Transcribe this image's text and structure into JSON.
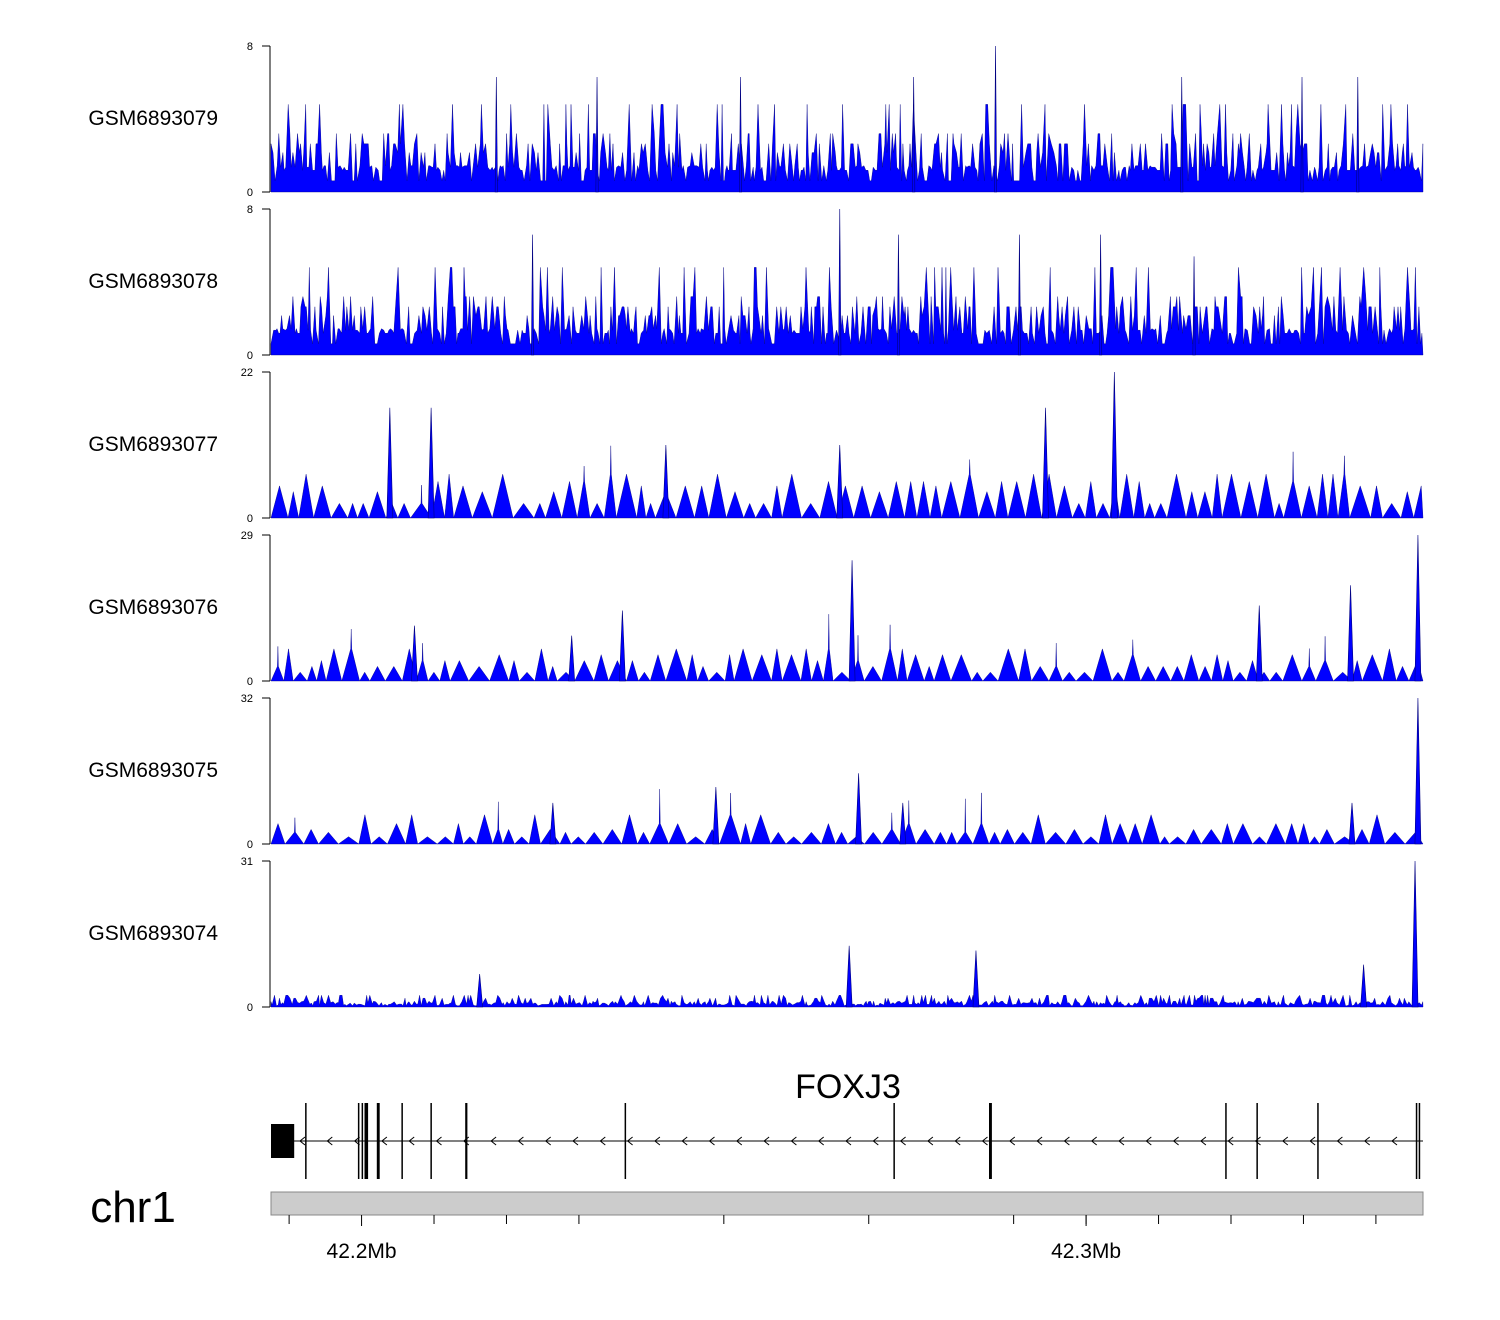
{
  "chart_data": {
    "type": "area",
    "region": {
      "chromosome": "chr1",
      "xlim": [
        42.1835,
        42.3425
      ],
      "tick_labels": [
        "42.2Mb",
        "42.3Mb"
      ]
    },
    "colors": {
      "signal": "#0000ff",
      "gene": "#000000",
      "ideogram": "#cccccc"
    },
    "tracks": [
      {
        "name": "GSM6893079",
        "ylim": [
          0,
          8
        ],
        "ytick_labels": [
          "0",
          "8"
        ],
        "peaks": [
          {
            "x": 42.2146,
            "y": 6.3
          },
          {
            "x": 42.2285,
            "y": 6.3
          },
          {
            "x": 42.2483,
            "y": 6.3
          },
          {
            "x": 42.2722,
            "y": 6.3
          },
          {
            "x": 42.2835,
            "y": 8.0
          },
          {
            "x": 42.3092,
            "y": 6.3
          },
          {
            "x": 42.3258,
            "y": 6.3
          },
          {
            "x": 42.3335,
            "y": 6.3
          }
        ]
      },
      {
        "name": "GSM6893078",
        "ylim": [
          0,
          8
        ],
        "ytick_labels": [
          "0",
          "8"
        ],
        "peaks": [
          {
            "x": 42.2196,
            "y": 6.6
          },
          {
            "x": 42.262,
            "y": 8.0
          },
          {
            "x": 42.2701,
            "y": 6.6
          },
          {
            "x": 42.2868,
            "y": 6.6
          },
          {
            "x": 42.298,
            "y": 6.6
          },
          {
            "x": 42.3109,
            "y": 5.4
          }
        ]
      },
      {
        "name": "GSM6893077",
        "ylim": [
          0,
          22
        ],
        "ytick_labels": [
          "0",
          "22"
        ],
        "peaks": [
          {
            "x": 42.1999,
            "y": 16.6
          },
          {
            "x": 42.2056,
            "y": 16.6
          },
          {
            "x": 42.2904,
            "y": 16.6
          },
          {
            "x": 42.2999,
            "y": 22.0
          },
          {
            "x": 42.238,
            "y": 11.0
          },
          {
            "x": 42.262,
            "y": 11.0
          }
        ]
      },
      {
        "name": "GSM6893076",
        "ylim": [
          0,
          29
        ],
        "ytick_labels": [
          "0",
          "29"
        ],
        "peaks": [
          {
            "x": 42.2033,
            "y": 11.0
          },
          {
            "x": 42.225,
            "y": 9.0
          },
          {
            "x": 42.232,
            "y": 14.0
          },
          {
            "x": 42.2637,
            "y": 24.0
          },
          {
            "x": 42.3199,
            "y": 15.0
          },
          {
            "x": 42.3325,
            "y": 19.0
          },
          {
            "x": 42.3418,
            "y": 29.0
          }
        ]
      },
      {
        "name": "GSM6893075",
        "ylim": [
          0,
          32
        ],
        "ytick_labels": [
          "0",
          "32"
        ],
        "peaks": [
          {
            "x": 42.2224,
            "y": 9.0
          },
          {
            "x": 42.2449,
            "y": 12.5
          },
          {
            "x": 42.2646,
            "y": 15.5
          },
          {
            "x": 42.2707,
            "y": 9.0
          },
          {
            "x": 42.3327,
            "y": 9.0
          },
          {
            "x": 42.3418,
            "y": 32.0
          }
        ]
      },
      {
        "name": "GSM6893074",
        "ylim": [
          0,
          31
        ],
        "ytick_labels": [
          "0",
          "31"
        ],
        "peaks": [
          {
            "x": 42.2123,
            "y": 7.0
          },
          {
            "x": 42.2633,
            "y": 13.0
          },
          {
            "x": 42.2808,
            "y": 12.0
          },
          {
            "x": 42.3343,
            "y": 9.0
          },
          {
            "x": 42.3414,
            "y": 31.0
          }
        ]
      }
    ],
    "gene": {
      "name": "FOXJ3",
      "strand": "-",
      "start": 42.1835,
      "end": 42.3425,
      "exons": [
        {
          "start": 42.1835,
          "end": 42.1867
        },
        {
          "start": 42.1882,
          "end": 42.1884
        },
        {
          "start": 42.1955,
          "end": 42.1957
        },
        {
          "start": 42.196,
          "end": 42.1962
        },
        {
          "start": 42.1964,
          "end": 42.1969
        },
        {
          "start": 42.1981,
          "end": 42.1985
        },
        {
          "start": 42.2015,
          "end": 42.2017
        },
        {
          "start": 42.2055,
          "end": 42.2057
        },
        {
          "start": 42.2103,
          "end": 42.2106
        },
        {
          "start": 42.2323,
          "end": 42.2325
        },
        {
          "start": 42.2694,
          "end": 42.2696
        },
        {
          "start": 42.2826,
          "end": 42.283
        },
        {
          "start": 42.3152,
          "end": 42.3154
        },
        {
          "start": 42.3195,
          "end": 42.3197
        },
        {
          "start": 42.3279,
          "end": 42.3281
        },
        {
          "start": 42.3415,
          "end": 42.3417
        },
        {
          "start": 42.3419,
          "end": 42.3421
        }
      ]
    }
  }
}
